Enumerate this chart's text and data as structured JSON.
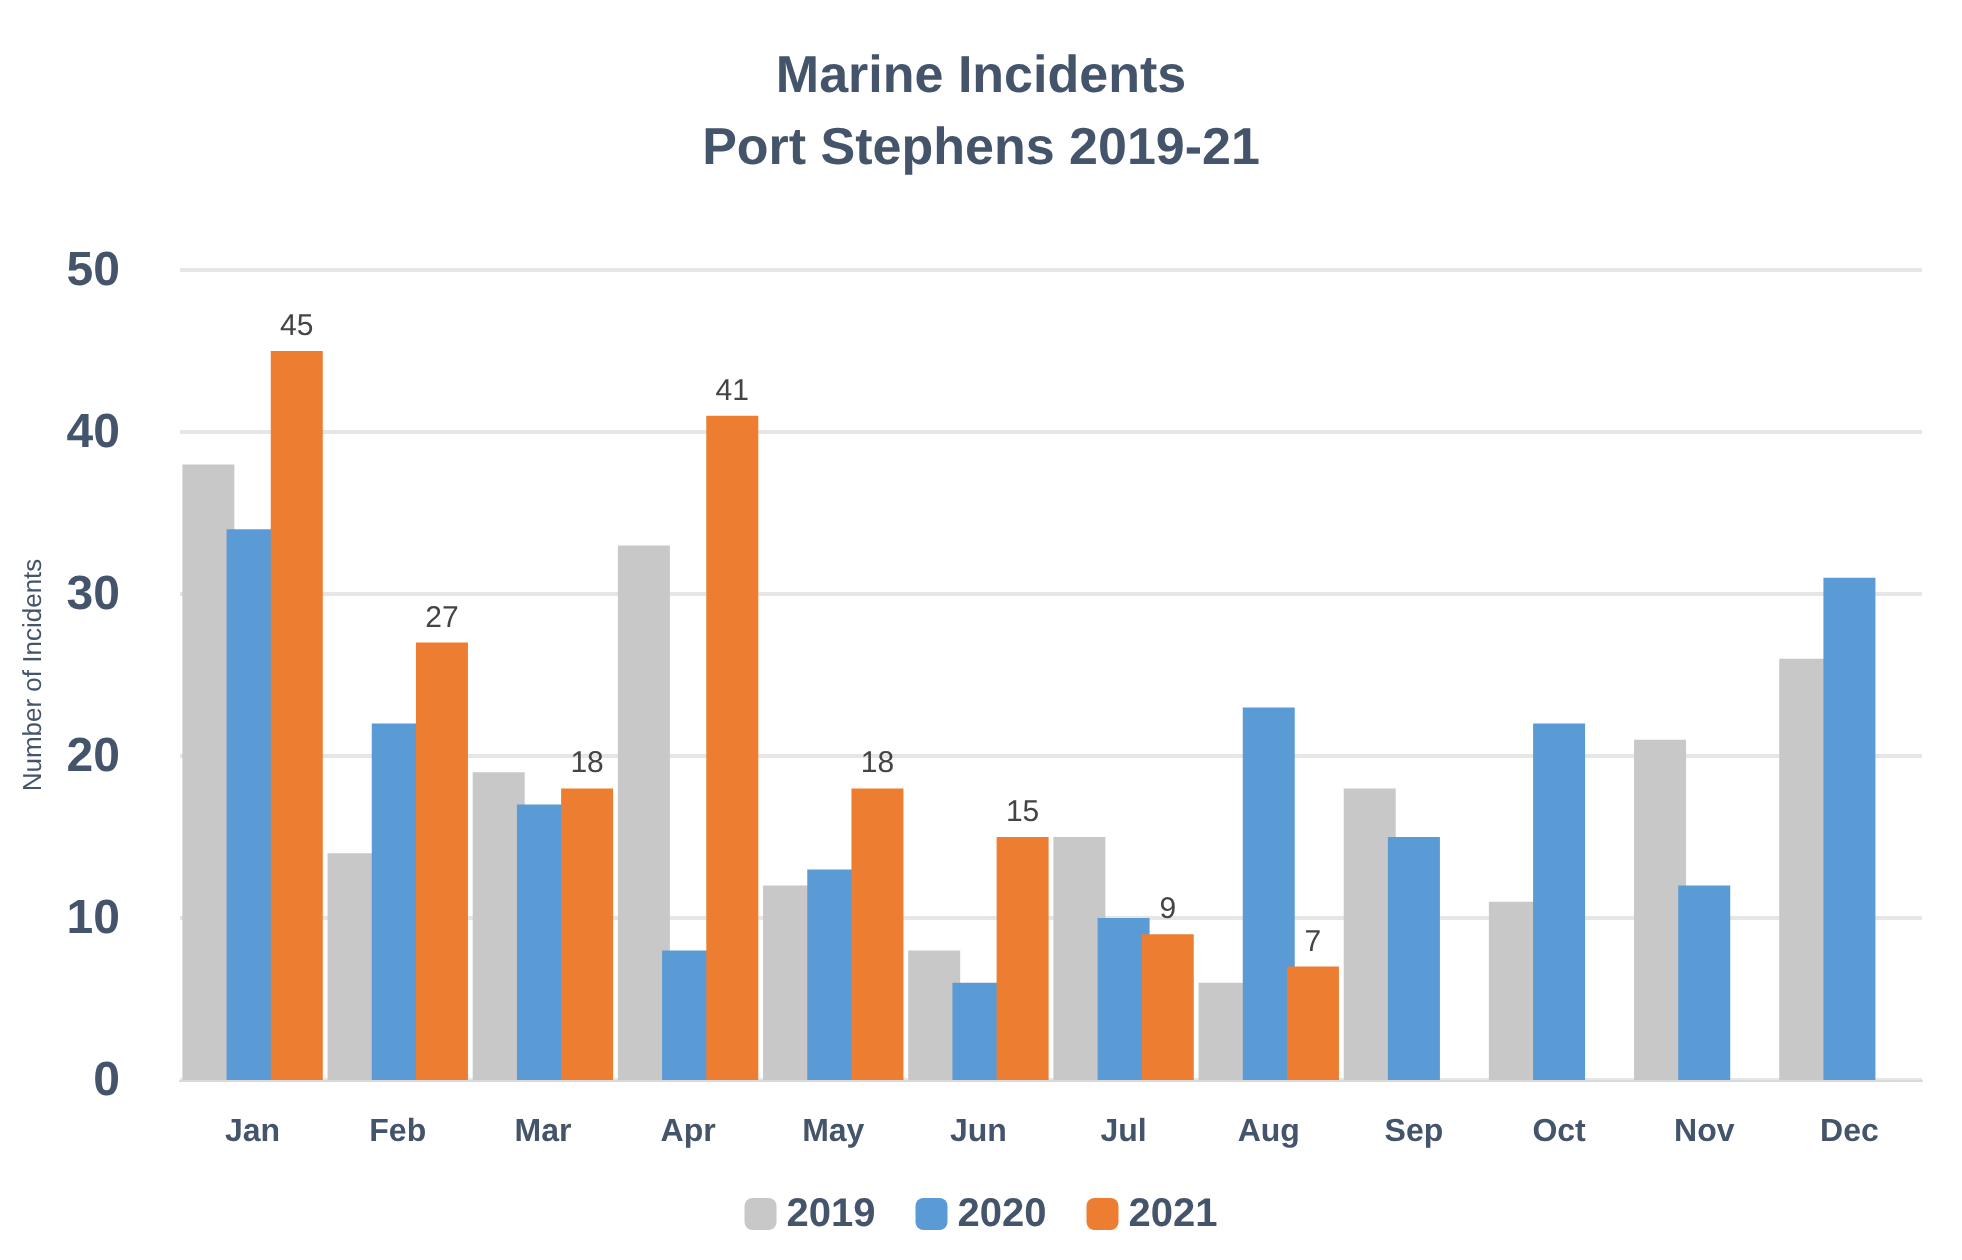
{
  "chart_data": {
    "type": "bar",
    "title": "Marine Incidents\nPort Stephens 2019-21",
    "ylabel": "Number of Incidents",
    "categories": [
      "Jan",
      "Feb",
      "Mar",
      "Apr",
      "May",
      "Jun",
      "Jul",
      "Aug",
      "Sep",
      "Oct",
      "Nov",
      "Dec"
    ],
    "series": [
      {
        "name": "2019",
        "color": "#c8c8c8",
        "values": [
          38,
          14,
          19,
          33,
          12,
          8,
          15,
          6,
          18,
          11,
          21,
          26
        ]
      },
      {
        "name": "2020",
        "color": "#5b9bd5",
        "values": [
          34,
          22,
          17,
          8,
          13,
          6,
          10,
          23,
          15,
          22,
          12,
          31
        ]
      },
      {
        "name": "2021",
        "color": "#ed7d31",
        "values": [
          45,
          27,
          18,
          41,
          18,
          15,
          9,
          7,
          null,
          null,
          null,
          null
        ],
        "value_labels": [
          "45",
          "27",
          "18",
          "41",
          "18",
          "15",
          "9",
          "7",
          null,
          null,
          null,
          null
        ]
      }
    ],
    "ylim": [
      0,
      50
    ],
    "yticks": [
      0,
      10,
      20,
      30,
      40,
      50
    ],
    "grid": "y",
    "legend": "bottom"
  }
}
